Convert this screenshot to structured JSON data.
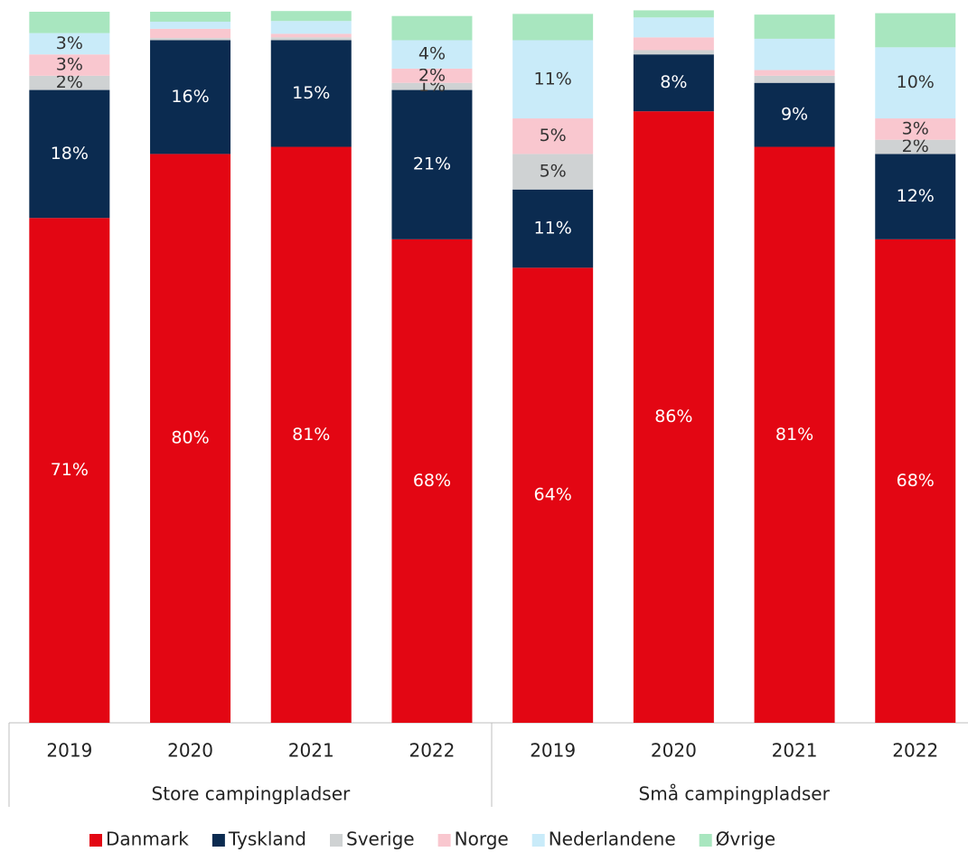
{
  "chart_data": {
    "type": "stacked_bar",
    "groups": [
      {
        "name": "Store campingpladser",
        "categories": [
          "2019",
          "2020",
          "2021",
          "2022"
        ]
      },
      {
        "name": "Små campingpladser",
        "categories": [
          "2019",
          "2020",
          "2021",
          "2022"
        ]
      }
    ],
    "ylim": [
      0,
      100
    ],
    "legend": "bottom",
    "series": [
      {
        "name": "Danmark",
        "color": "#e30613",
        "values": [
          71,
          80,
          81,
          68,
          64,
          86,
          81,
          68
        ],
        "value_labels": [
          "71%",
          "80%",
          "81%",
          "68%",
          "64%",
          "86%",
          "81%",
          "68%"
        ]
      },
      {
        "name": "Tyskland",
        "color": "#0b2b50",
        "values": [
          18,
          16,
          15,
          21,
          11,
          8,
          9,
          12
        ],
        "value_labels": [
          "18%",
          "16%",
          "15%",
          "21%",
          "11%",
          "8%",
          "9%",
          "12%"
        ]
      },
      {
        "name": "Sverige",
        "color": "#cfd2d3",
        "values": [
          2,
          0.3,
          0.4,
          1,
          5,
          0.6,
          1.0,
          2
        ],
        "value_labels": [
          "2%",
          null,
          null,
          "1%",
          "5%",
          null,
          null,
          "2%"
        ]
      },
      {
        "name": "Norge",
        "color": "#f9c7cf",
        "values": [
          3,
          1.3,
          0.5,
          2,
          5,
          1.8,
          0.8,
          3
        ],
        "value_labels": [
          "3%",
          null,
          null,
          "2%",
          "5%",
          null,
          null,
          "3%"
        ]
      },
      {
        "name": "Nederlandene",
        "color": "#c9ebf9",
        "values": [
          3,
          1.0,
          1.8,
          4,
          11,
          2.8,
          4.4,
          10
        ],
        "value_labels": [
          "3%",
          null,
          null,
          "4%",
          "11%",
          null,
          null,
          "10%"
        ]
      },
      {
        "name": "Øvrige",
        "color": "#a8e6bf",
        "values": [
          3,
          1.4,
          1.4,
          3.4,
          3.7,
          1.0,
          3.4,
          4.8
        ],
        "value_labels": [
          null,
          null,
          null,
          null,
          null,
          null,
          null,
          null
        ]
      }
    ]
  }
}
